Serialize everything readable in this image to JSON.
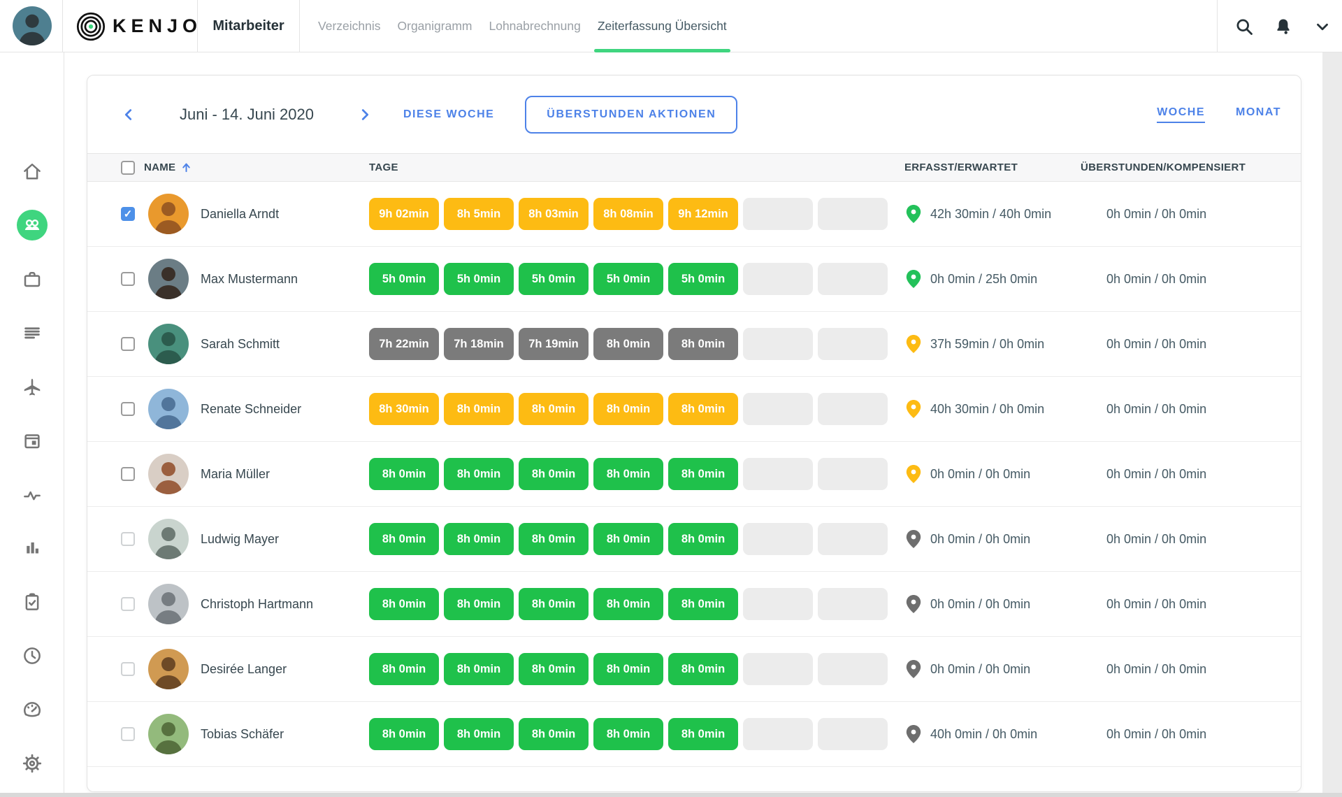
{
  "topbar": {
    "logo_text": "KENJO",
    "section_title": "Mitarbeiter",
    "nav_items": [
      {
        "label": "Verzeichnis",
        "active": false
      },
      {
        "label": "Organigramm",
        "active": false
      },
      {
        "label": "Lohnabrechnung",
        "active": false
      },
      {
        "label": "Zeiterfassung Übersicht",
        "active": true
      }
    ],
    "icons": [
      "search-icon",
      "notifications-icon",
      "chevron-down-icon"
    ],
    "user_avatar": {
      "bg": "#4E7F90",
      "fg": "#2E3A3F"
    }
  },
  "sidebar": {
    "items": [
      "home",
      "employees",
      "briefcase",
      "documents",
      "travel",
      "calendar",
      "activity",
      "reports",
      "tasks",
      "time",
      "dashboard",
      "settings"
    ],
    "active_item": "employees"
  },
  "toolbar": {
    "date_range": "Juni - 14. Juni 2020",
    "this_week_label": "DIESE WOCHE",
    "overtime_actions_label": "ÜBERSTUNDEN AKTIONEN",
    "week_label": "WOCHE",
    "month_label": "MONAT",
    "active_view": "WOCHE"
  },
  "table": {
    "columns": {
      "name": "NAME",
      "days": "TAGE",
      "tracked": "ERFASST/ERWARTET",
      "overtime": "ÜBERSTUNDEN/KOMPENSIERT"
    },
    "sort": {
      "column": "NAME",
      "direction": "asc"
    },
    "rows": [
      {
        "name": "Daniella Arndt",
        "checked": true,
        "avatar": {
          "bg": "#E9992D",
          "fg": "#9C5B22"
        },
        "chips": [
          {
            "label": "9h 02min",
            "color": "yellow"
          },
          {
            "label": "8h 5min",
            "color": "yellow"
          },
          {
            "label": "8h 03min",
            "color": "yellow"
          },
          {
            "label": "8h 08min",
            "color": "yellow"
          },
          {
            "label": "9h 12min",
            "color": "yellow"
          },
          {
            "label": "",
            "color": "empty"
          },
          {
            "label": "",
            "color": "empty"
          }
        ],
        "pin": "green",
        "tracked": "42h 30min / 40h 0min",
        "overtime": "0h 0min / 0h 0min"
      },
      {
        "name": "Max Mustermann",
        "checked": false,
        "avatar": {
          "bg": "#6B7D85",
          "fg": "#3A3029"
        },
        "chips": [
          {
            "label": "5h 0min",
            "color": "green"
          },
          {
            "label": "5h 0min",
            "color": "green"
          },
          {
            "label": "5h 0min",
            "color": "green"
          },
          {
            "label": "5h 0min",
            "color": "green"
          },
          {
            "label": "5h 0min",
            "color": "green"
          },
          {
            "label": "",
            "color": "empty"
          },
          {
            "label": "",
            "color": "empty"
          }
        ],
        "pin": "green",
        "tracked": "0h 0min / 25h 0min",
        "overtime": "0h 0min / 0h 0min"
      },
      {
        "name": "Sarah Schmitt",
        "checked": false,
        "avatar": {
          "bg": "#49907D",
          "fg": "#2C5C4E"
        },
        "chips": [
          {
            "label": "7h 22min",
            "color": "gray"
          },
          {
            "label": "7h 18min",
            "color": "gray"
          },
          {
            "label": "7h 19min",
            "color": "gray"
          },
          {
            "label": "8h 0min",
            "color": "gray"
          },
          {
            "label": "8h 0min",
            "color": "gray"
          },
          {
            "label": "",
            "color": "empty"
          },
          {
            "label": "",
            "color": "empty"
          }
        ],
        "pin": "yellow",
        "tracked": "37h 59min / 0h 0min",
        "overtime": "0h 0min / 0h 0min"
      },
      {
        "name": "Renate Schneider",
        "checked": false,
        "avatar": {
          "bg": "#8FB6D9",
          "fg": "#51759B"
        },
        "chips": [
          {
            "label": "8h 30min",
            "color": "yellow"
          },
          {
            "label": "8h 0min",
            "color": "yellow"
          },
          {
            "label": "8h 0min",
            "color": "yellow"
          },
          {
            "label": "8h 0min",
            "color": "yellow"
          },
          {
            "label": "8h 0min",
            "color": "yellow"
          },
          {
            "label": "",
            "color": "empty"
          },
          {
            "label": "",
            "color": "empty"
          }
        ],
        "pin": "yellow",
        "tracked": "40h 30min / 0h 0min",
        "overtime": "0h 0min / 0h 0min"
      },
      {
        "name": "Maria Müller",
        "checked": false,
        "avatar": {
          "bg": "#D9CEC5",
          "fg": "#9B5F3F"
        },
        "chips": [
          {
            "label": "8h 0min",
            "color": "green"
          },
          {
            "label": "8h 0min",
            "color": "green"
          },
          {
            "label": "8h 0min",
            "color": "green"
          },
          {
            "label": "8h 0min",
            "color": "green"
          },
          {
            "label": "8h 0min",
            "color": "green"
          },
          {
            "label": "",
            "color": "empty"
          },
          {
            "label": "",
            "color": "empty"
          }
        ],
        "pin": "yellow",
        "tracked": "0h 0min / 0h 0min",
        "overtime": "0h 0min / 0h 0min"
      },
      {
        "name": "Ludwig Mayer",
        "checked": false,
        "avatar": {
          "bg": "#C9D4CE",
          "fg": "#6D7A74"
        },
        "chips": [
          {
            "label": "8h 0min",
            "color": "green"
          },
          {
            "label": "8h 0min",
            "color": "green"
          },
          {
            "label": "8h 0min",
            "color": "green"
          },
          {
            "label": "8h 0min",
            "color": "green"
          },
          {
            "label": "8h 0min",
            "color": "green"
          },
          {
            "label": "",
            "color": "empty"
          },
          {
            "label": "",
            "color": "empty"
          }
        ],
        "pin": "gray",
        "tracked": "0h 0min / 0h 0min",
        "overtime": "0h 0min / 0h 0min"
      },
      {
        "name": "Christoph Hartmann",
        "checked": false,
        "avatar": {
          "bg": "#BDC2C6",
          "fg": "#777D82"
        },
        "chips": [
          {
            "label": "8h 0min",
            "color": "green"
          },
          {
            "label": "8h 0min",
            "color": "green"
          },
          {
            "label": "8h 0min",
            "color": "green"
          },
          {
            "label": "8h 0min",
            "color": "green"
          },
          {
            "label": "8h 0min",
            "color": "green"
          },
          {
            "label": "",
            "color": "empty"
          },
          {
            "label": "",
            "color": "empty"
          }
        ],
        "pin": "gray",
        "tracked": "0h 0min / 0h 0min",
        "overtime": "0h 0min / 0h 0min"
      },
      {
        "name": "Desirée Langer",
        "checked": false,
        "avatar": {
          "bg": "#D09A52",
          "fg": "#6E4A26"
        },
        "chips": [
          {
            "label": "8h 0min",
            "color": "green"
          },
          {
            "label": "8h 0min",
            "color": "green"
          },
          {
            "label": "8h 0min",
            "color": "green"
          },
          {
            "label": "8h 0min",
            "color": "green"
          },
          {
            "label": "8h 0min",
            "color": "green"
          },
          {
            "label": "",
            "color": "empty"
          },
          {
            "label": "",
            "color": "empty"
          }
        ],
        "pin": "gray",
        "tracked": "0h 0min / 0h 0min",
        "overtime": "0h 0min / 0h 0min"
      },
      {
        "name": "Tobias Schäfer",
        "checked": false,
        "avatar": {
          "bg": "#93BA7C",
          "fg": "#57713F"
        },
        "chips": [
          {
            "label": "8h 0min",
            "color": "green"
          },
          {
            "label": "8h 0min",
            "color": "green"
          },
          {
            "label": "8h 0min",
            "color": "green"
          },
          {
            "label": "8h 0min",
            "color": "green"
          },
          {
            "label": "8h 0min",
            "color": "green"
          },
          {
            "label": "",
            "color": "empty"
          },
          {
            "label": "",
            "color": "empty"
          }
        ],
        "pin": "gray",
        "tracked": "40h 0min / 0h 0min",
        "overtime": "0h 0min / 0h 0min"
      }
    ]
  },
  "colors": {
    "chip_yellow": "#FDBB13",
    "chip_green": "#1FC14B",
    "chip_gray": "#7B7B7B",
    "chip_empty": "#ECECEC",
    "pin_green": "#23C15A",
    "pin_yellow": "#FDBB13",
    "pin_gray": "#6E6E6E",
    "accent_blue": "#4D82E8",
    "accent_green": "#3FD57F",
    "checkbox_blue": "#4D90E8"
  }
}
